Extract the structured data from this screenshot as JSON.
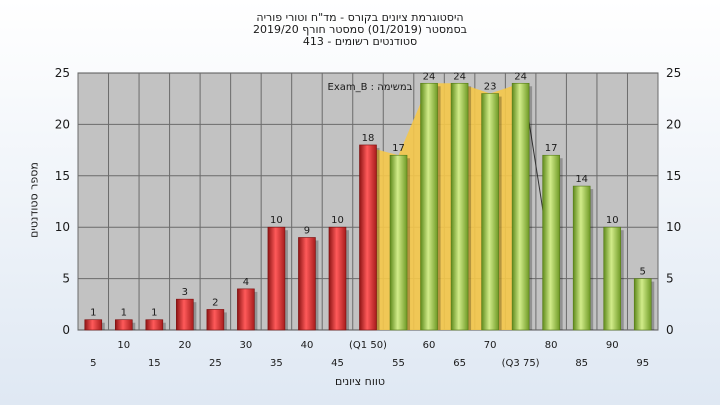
{
  "titles": {
    "line1": "היסטוגרמת ציונים בקורס - מד\"ח וטורי פוריה",
    "line2": "בסמסטר  (01/2019)  סמסטר חורף 2019/20",
    "line3": "סטודנטים רשומים - 413"
  },
  "colors": {
    "plot_bg": "#c2c2c2",
    "red_bar": "#d42a2a",
    "green_bar": "#9cc24a",
    "quartile_band": "#f5c84a",
    "gridline": "#6b6b6b"
  },
  "chart_data": {
    "type": "bar",
    "title": "היסטוגרמת ציונים בקורס - מד\"ח וטורי פוריה",
    "xlabel": "טווח ציונים",
    "ylabel": "מספר סטודנטים",
    "ylim": [
      0,
      25
    ],
    "yticks": [
      0,
      5,
      10,
      15,
      20,
      25
    ],
    "grid": true,
    "annotation": "Exam_B : במשימה",
    "categories": [
      "5",
      "10",
      "15",
      "20",
      "25",
      "30",
      "35",
      "40",
      "45",
      "(Q1 50)",
      "55",
      "60",
      "65",
      "70",
      "(Q3 75)",
      "80",
      "85",
      "90",
      "95"
    ],
    "values": [
      1,
      1,
      1,
      3,
      2,
      4,
      10,
      9,
      10,
      18,
      17,
      24,
      24,
      23,
      24,
      17,
      14,
      10,
      5
    ],
    "bar_colors": [
      "red",
      "red",
      "red",
      "red",
      "red",
      "red",
      "red",
      "red",
      "red",
      "red",
      "green",
      "green",
      "green",
      "green",
      "green",
      "green",
      "green",
      "green",
      "green"
    ]
  }
}
